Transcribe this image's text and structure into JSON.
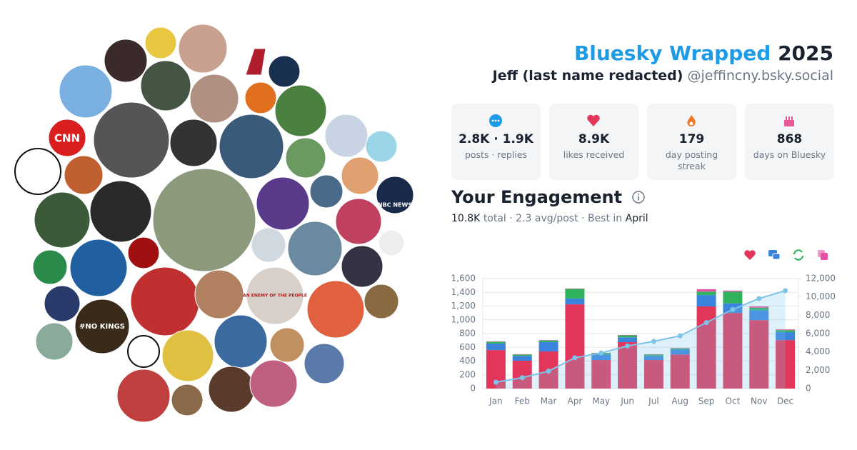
{
  "header": {
    "title": "Bluesky Wrapped",
    "year": "2025",
    "name": "Jeff (last name redacted)",
    "handle": "@jeffincny.bsky.social"
  },
  "avatar_texts": [
    "CNN",
    "NBC NEWS",
    "#NO KINGS",
    "AN ENEMY OF THE PEOPLE"
  ],
  "stats": [
    {
      "value": "2.8K · 1.9K",
      "label": "posts · replies"
    },
    {
      "value": "8.9K",
      "label": "likes received"
    },
    {
      "value": "179",
      "label": "day posting streak"
    },
    {
      "value": "868",
      "label": "days on Bluesky"
    }
  ],
  "engagement": {
    "title": "Your Engagement",
    "total": "10.8K",
    "summary": "total · 2.3 avg/post · Best in",
    "best": "April"
  },
  "chart_data": {
    "type": "bar",
    "stacked": true,
    "categories": [
      "Jan",
      "Feb",
      "Mar",
      "Apr",
      "May",
      "Jun",
      "Jul",
      "Aug",
      "Sep",
      "Oct",
      "Nov",
      "Dec"
    ],
    "series": [
      {
        "color": "#e2375a",
        "values": [
          560,
          405,
          540,
          1225,
          415,
          675,
          415,
          495,
          1195,
          1100,
          995,
          705
        ]
      },
      {
        "color": "#3a84de",
        "values": [
          95,
          70,
          135,
          85,
          80,
          70,
          60,
          75,
          165,
          140,
          145,
          115
        ]
      },
      {
        "color": "#2eb35c",
        "values": [
          25,
          20,
          25,
          140,
          20,
          30,
          20,
          15,
          50,
          170,
          35,
          30
        ]
      },
      {
        "color": "#e64fa6",
        "values": [
          5,
          5,
          5,
          5,
          5,
          5,
          5,
          5,
          35,
          15,
          20,
          10
        ]
      },
      {
        "type": "line",
        "axis": "y2",
        "color": "#7cc4ea",
        "values": [
          690,
          1190,
          1900,
          3360,
          3880,
          4650,
          5150,
          5750,
          7200,
          8630,
          9820,
          10680
        ]
      }
    ],
    "ylim": [
      0,
      1600
    ],
    "yticks": [
      0,
      200,
      400,
      600,
      800,
      {
        "value": 1000,
        "label": "1,000"
      },
      {
        "value": 1200,
        "label": "1,200"
      },
      {
        "value": 1400,
        "label": "1,400"
      },
      {
        "value": 1600,
        "label": "1,600"
      }
    ],
    "y2lim": [
      0,
      12000
    ],
    "y2ticks": [
      0,
      {
        "value": 2000,
        "label": "2,000"
      },
      {
        "value": 4000,
        "label": "4,000"
      },
      {
        "value": 6000,
        "label": "6,000"
      },
      {
        "value": 8000,
        "label": "8,000"
      },
      {
        "value": 10000,
        "label": "10,000"
      },
      {
        "value": 12000,
        "label": "12,000"
      }
    ],
    "grid": true
  }
}
